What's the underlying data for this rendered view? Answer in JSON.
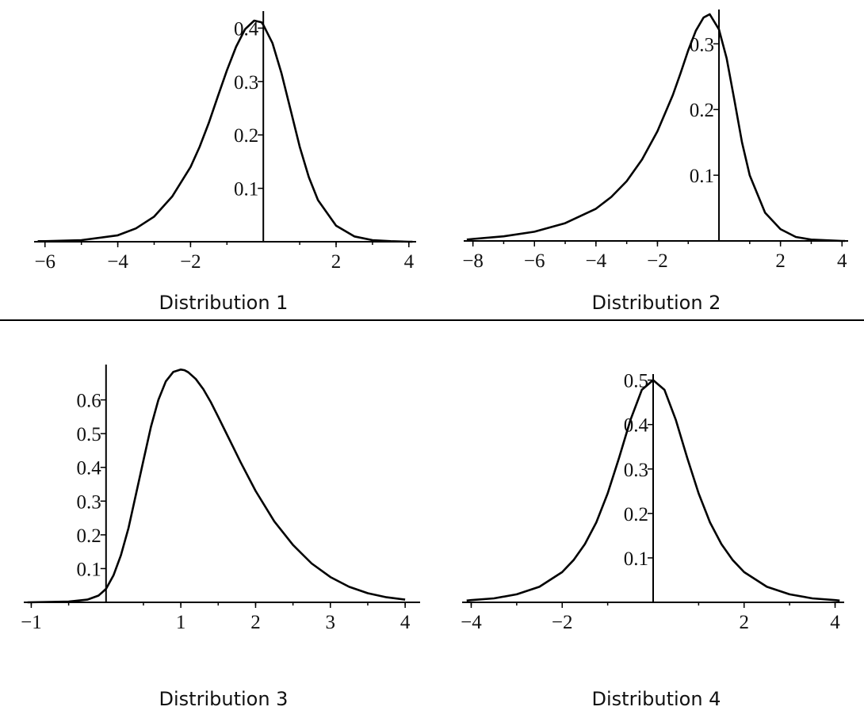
{
  "chart_data": [
    {
      "type": "line",
      "caption": "Distribution 1",
      "xlim": [
        -6.3,
        4.2
      ],
      "ylim": [
        0,
        0.42
      ],
      "xticks": [
        -6,
        -4,
        -2,
        2,
        4
      ],
      "xtick_labels": [
        "−6",
        "−4",
        "−2",
        "2",
        "4"
      ],
      "yticks": [
        0.1,
        0.2,
        0.3,
        0.4
      ],
      "ytick_labels": [
        "0.1",
        "0.2",
        "0.3",
        "0.4"
      ],
      "series": [
        {
          "x": [
            -6.2,
            -6,
            -5,
            -4,
            -3.5,
            -3,
            -2.5,
            -2,
            -1.75,
            -1.5,
            -1.25,
            -1,
            -0.75,
            -0.5,
            -0.25,
            -0.05,
            0,
            0.25,
            0.5,
            0.75,
            1,
            1.25,
            1.5,
            2,
            2.5,
            3,
            3.5,
            4,
            4.1
          ],
          "y": [
            0.001,
            0.001,
            0.003,
            0.012,
            0.025,
            0.047,
            0.085,
            0.14,
            0.178,
            0.222,
            0.272,
            0.321,
            0.365,
            0.398,
            0.414,
            0.411,
            0.406,
            0.372,
            0.315,
            0.247,
            0.178,
            0.121,
            0.078,
            0.03,
            0.01,
            0.003,
            0.001,
            0.0,
            0.0
          ]
        }
      ]
    },
    {
      "type": "line",
      "caption": "Distribution 2",
      "xlim": [
        -8.3,
        4.2
      ],
      "ylim": [
        0,
        0.345
      ],
      "xticks": [
        -8,
        -6,
        -4,
        -2,
        2,
        4
      ],
      "xtick_labels": [
        "−8",
        "−6",
        "−4",
        "−2",
        "2",
        "4"
      ],
      "yticks": [
        0.1,
        0.2,
        0.3
      ],
      "ytick_labels": [
        "0.1",
        "0.2",
        "0.3"
      ],
      "series": [
        {
          "x": [
            -8.2,
            -8,
            -7,
            -6,
            -5,
            -4,
            -3.5,
            -3,
            -2.5,
            -2,
            -1.5,
            -1.25,
            -1,
            -0.75,
            -0.5,
            -0.3,
            0,
            0.25,
            0.5,
            0.75,
            1,
            1.5,
            2,
            2.5,
            3,
            3.5,
            4,
            4.1
          ],
          "y": [
            0.002,
            0.003,
            0.007,
            0.014,
            0.027,
            0.049,
            0.067,
            0.091,
            0.124,
            0.167,
            0.222,
            0.255,
            0.29,
            0.32,
            0.34,
            0.345,
            0.322,
            0.278,
            0.215,
            0.15,
            0.1,
            0.043,
            0.018,
            0.006,
            0.002,
            0.001,
            0.0,
            0.0
          ]
        }
      ]
    },
    {
      "type": "line",
      "caption": "Distribution 3",
      "xlim": [
        -1.1,
        4.2
      ],
      "ylim": [
        0,
        0.7
      ],
      "xticks": [
        -1,
        1,
        2,
        3,
        4
      ],
      "xtick_labels": [
        "−1",
        "1",
        "2",
        "3",
        "4"
      ],
      "yticks": [
        0.1,
        0.2,
        0.3,
        0.4,
        0.5,
        0.6
      ],
      "ytick_labels": [
        "0.1",
        "0.2",
        "0.3",
        "0.4",
        "0.5",
        "0.6"
      ],
      "series": [
        {
          "x": [
            -1.05,
            -0.5,
            -0.25,
            -0.1,
            0,
            0.1,
            0.2,
            0.3,
            0.4,
            0.5,
            0.6,
            0.7,
            0.8,
            0.9,
            1.0,
            1.05,
            1.1,
            1.2,
            1.3,
            1.4,
            1.5,
            1.6,
            1.7,
            1.8,
            2.0,
            2.25,
            2.5,
            2.75,
            3.0,
            3.25,
            3.5,
            3.75,
            4.0
          ],
          "y": [
            0.0,
            0.002,
            0.008,
            0.02,
            0.04,
            0.08,
            0.14,
            0.22,
            0.32,
            0.42,
            0.52,
            0.6,
            0.655,
            0.683,
            0.69,
            0.688,
            0.682,
            0.662,
            0.632,
            0.594,
            0.55,
            0.505,
            0.46,
            0.415,
            0.33,
            0.24,
            0.17,
            0.115,
            0.075,
            0.046,
            0.027,
            0.015,
            0.008
          ]
        }
      ]
    },
    {
      "type": "line",
      "caption": "Distribution 4",
      "xlim": [
        -4.2,
        4.2
      ],
      "ylim": [
        0,
        0.51
      ],
      "xticks": [
        -4,
        -2,
        2,
        4
      ],
      "xtick_labels": [
        "−4",
        "−2",
        "2",
        "4"
      ],
      "yticks": [
        0.1,
        0.2,
        0.3,
        0.4,
        0.5
      ],
      "ytick_labels": [
        "0.1",
        "0.2",
        "0.3",
        "0.4",
        "0.5"
      ],
      "series": [
        {
          "x": [
            -4.1,
            -4,
            -3.5,
            -3,
            -2.5,
            -2,
            -1.75,
            -1.5,
            -1.25,
            -1,
            -0.75,
            -0.5,
            -0.25,
            0,
            0.25,
            0.5,
            0.75,
            1,
            1.25,
            1.5,
            1.75,
            2,
            2.5,
            3,
            3.5,
            4,
            4.1
          ],
          "y": [
            0.004,
            0.005,
            0.009,
            0.018,
            0.035,
            0.068,
            0.095,
            0.131,
            0.18,
            0.245,
            0.325,
            0.41,
            0.478,
            0.5,
            0.478,
            0.41,
            0.325,
            0.245,
            0.18,
            0.131,
            0.095,
            0.068,
            0.035,
            0.018,
            0.009,
            0.005,
            0.004
          ]
        }
      ]
    }
  ]
}
